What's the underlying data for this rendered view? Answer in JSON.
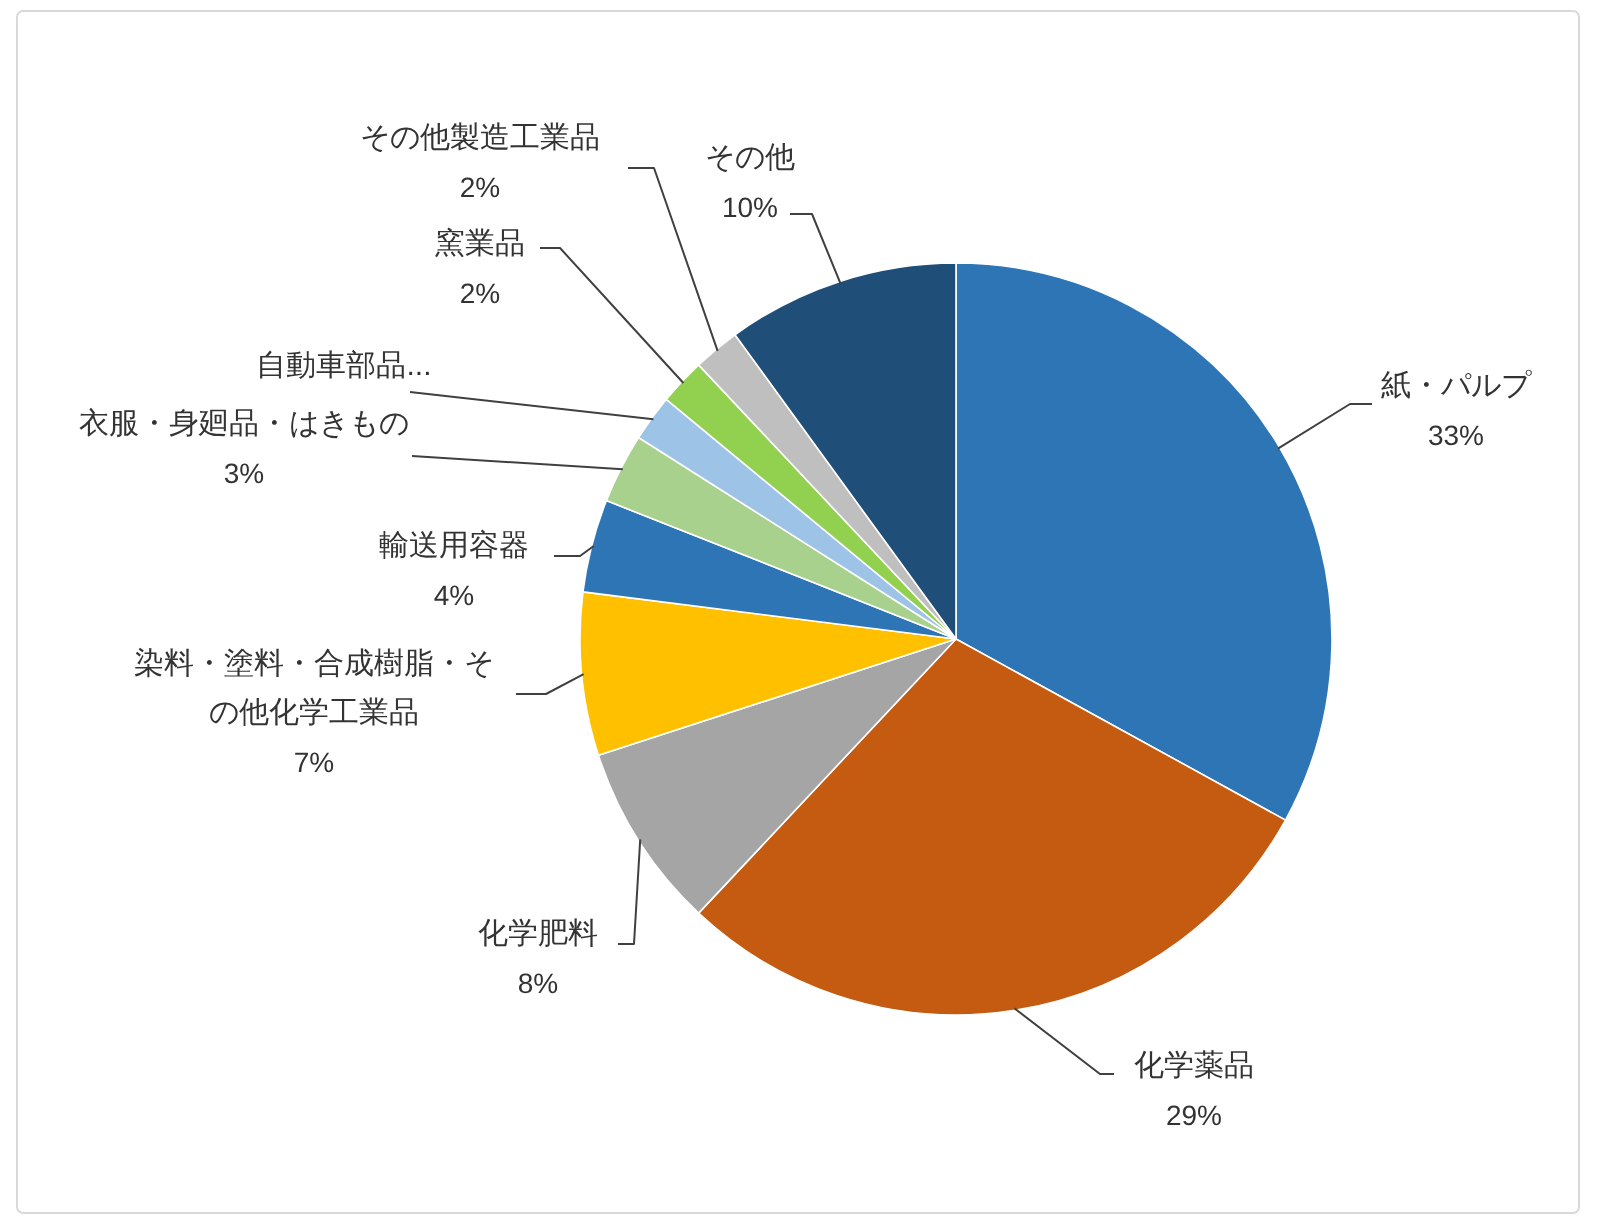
{
  "chart_data": {
    "type": "pie",
    "categories": [
      "紙・パルプ",
      "化学薬品",
      "化学肥料",
      "染料・塗料・合成樹脂・その他化学工業品",
      "輸送用容器",
      "衣服・身廻品・はきもの",
      "自動車部品...",
      "窯業品",
      "その他製造工業品",
      "その他"
    ],
    "values": [
      33,
      29,
      8,
      7,
      4,
      3,
      2,
      2,
      2,
      10
    ],
    "colors": [
      "#2e75b6",
      "#c55a11",
      "#a5a5a5",
      "#ffc000",
      "#2e75b6",
      "#a9d18e",
      "#9dc3e6",
      "#92d050",
      "#bfbfbf",
      "#1f4e79"
    ],
    "value_labels": [
      "33%",
      "29%",
      "8%",
      "7%",
      "4%",
      "3%",
      null,
      "2%",
      "2%",
      "10%"
    ]
  }
}
